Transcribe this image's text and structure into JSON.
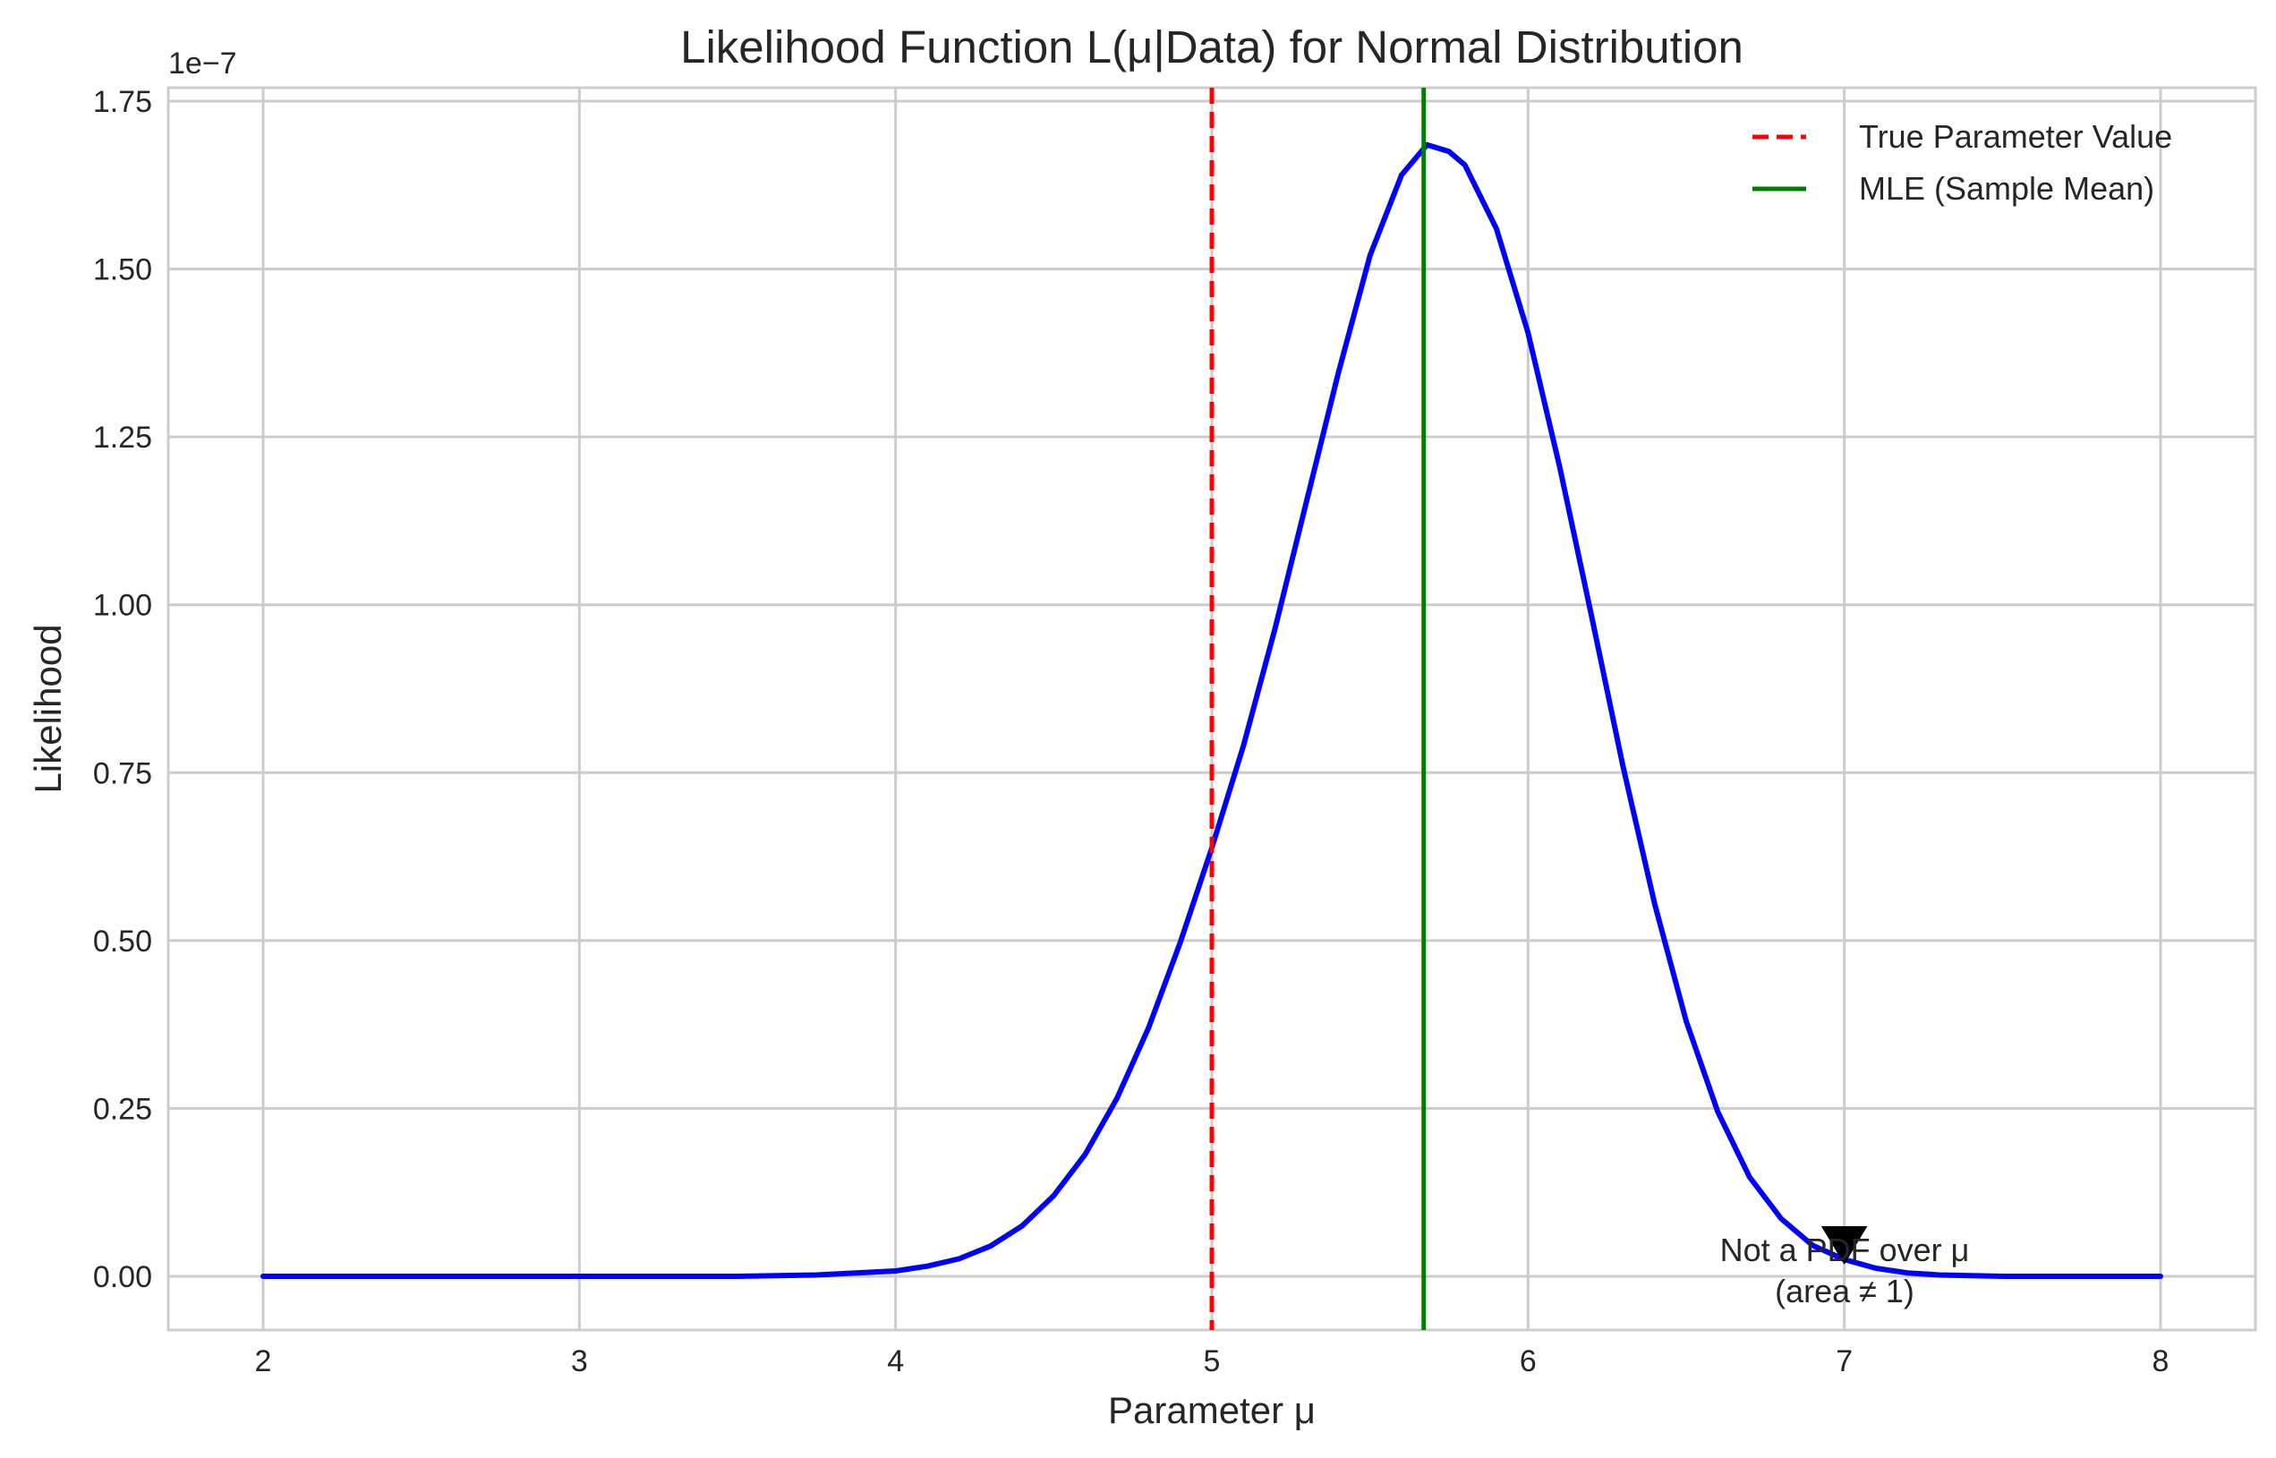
{
  "chart_data": {
    "type": "line",
    "title": "Likelihood Function L(μ|Data) for Normal Distribution",
    "xlabel": "Parameter μ",
    "ylabel": "Likelihood",
    "y_offset_label": "1e−7",
    "y_scale_factor": 1e-07,
    "xlim": [
      1.7,
      8.3
    ],
    "ylim": [
      -0.08,
      1.77
    ],
    "x_ticks": [
      2,
      3,
      4,
      5,
      6,
      7,
      8
    ],
    "x_tick_labels": [
      "2",
      "3",
      "4",
      "5",
      "6",
      "7",
      "8"
    ],
    "y_ticks": [
      0.0,
      0.25,
      0.5,
      0.75,
      1.0,
      1.25,
      1.5,
      1.75
    ],
    "y_tick_labels": [
      "0.00",
      "0.25",
      "0.50",
      "0.75",
      "1.00",
      "1.25",
      "1.50",
      "1.75"
    ],
    "grid": true,
    "legend_position": "top-right",
    "series": [
      {
        "kind": "curve",
        "color": "#0000ff",
        "x": [
          2.0,
          2.5,
          3.0,
          3.5,
          3.75,
          4.0,
          4.1,
          4.2,
          4.3,
          4.4,
          4.5,
          4.6,
          4.7,
          4.8,
          4.9,
          5.0,
          5.1,
          5.2,
          5.3,
          5.4,
          5.5,
          5.6,
          5.68,
          5.75,
          5.8,
          5.9,
          6.0,
          6.1,
          6.2,
          6.3,
          6.4,
          6.5,
          6.6,
          6.7,
          6.8,
          6.9,
          7.0,
          7.1,
          7.2,
          7.3,
          7.4,
          7.5,
          7.75,
          8.0
        ],
        "values": [
          0.0,
          0.0,
          0.0,
          0.0,
          0.002,
          0.008,
          0.015,
          0.026,
          0.045,
          0.075,
          0.12,
          0.182,
          0.265,
          0.37,
          0.497,
          0.638,
          0.79,
          0.965,
          1.155,
          1.345,
          1.52,
          1.64,
          1.685,
          1.675,
          1.655,
          1.56,
          1.405,
          1.205,
          0.985,
          0.76,
          0.555,
          0.38,
          0.245,
          0.148,
          0.086,
          0.046,
          0.025,
          0.012,
          0.005,
          0.002,
          0.001,
          0.0,
          0.0,
          0.0
        ]
      },
      {
        "kind": "vline",
        "name": "True Parameter Value",
        "color": "#ff0000",
        "style": "dashed",
        "x": 5.0
      },
      {
        "kind": "vline",
        "name": "MLE (Sample Mean)",
        "color": "#008000",
        "style": "solid",
        "x": 5.67
      }
    ],
    "annotation": {
      "text_lines": [
        "Not a PDF over μ",
        "(area ≠ 1)"
      ],
      "arrow_tip": [
        7.0,
        0.02
      ],
      "color": "#000000"
    }
  }
}
